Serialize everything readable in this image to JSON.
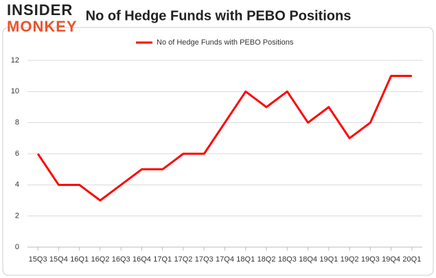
{
  "logo": {
    "line1": "INSIDER",
    "line2": "MONKEY"
  },
  "chart_data": {
    "type": "line",
    "title": "No of Hedge Funds with PEBO Positions",
    "categories": [
      "15Q3",
      "15Q4",
      "16Q1",
      "16Q2",
      "16Q3",
      "16Q4",
      "17Q1",
      "17Q2",
      "17Q3",
      "17Q4",
      "18Q1",
      "18Q2",
      "18Q3",
      "18Q4",
      "19Q1",
      "19Q2",
      "19Q3",
      "19Q4",
      "20Q1"
    ],
    "series": [
      {
        "name": "No of Hedge Funds with PEBO Positions",
        "color": "#ff0000",
        "values": [
          6,
          4,
          4,
          3,
          4,
          5,
          5,
          6,
          6,
          8,
          10,
          9,
          10,
          8,
          9,
          7,
          8,
          11,
          11
        ]
      }
    ],
    "ylim": [
      0,
      12
    ],
    "yticks": [
      0,
      2,
      4,
      6,
      8,
      10,
      12
    ],
    "grid": true,
    "legend": "top"
  }
}
